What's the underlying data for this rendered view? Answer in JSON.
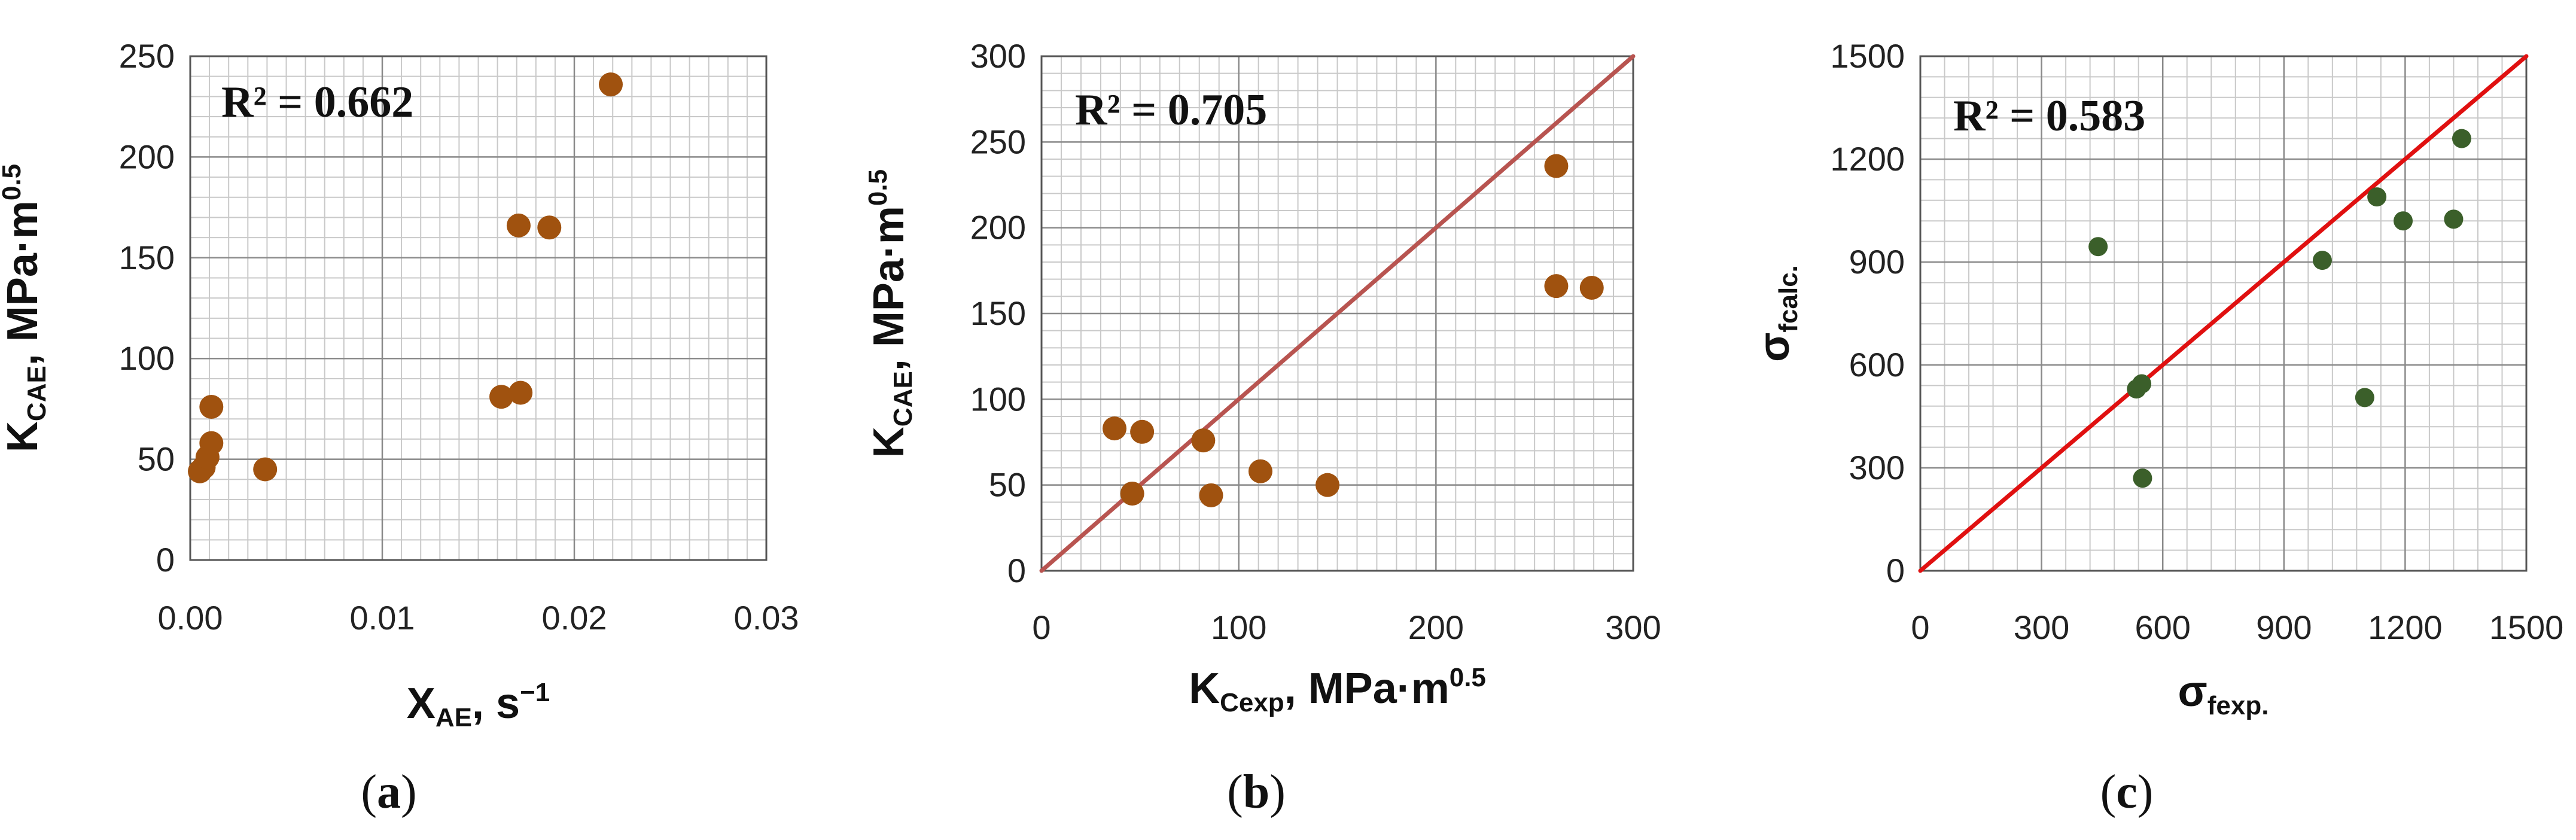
{
  "chart_data": [
    {
      "type": "scatter",
      "panel_label": "(a)",
      "panel_letter": "a",
      "r2_label": "R² = ",
      "r2_value": "0.662",
      "xlabel": {
        "main": "X",
        "sub": "AE",
        "tail": ", s",
        "sup": "−1"
      },
      "ylabel": {
        "main": "K",
        "sub": "CAE",
        "tail": ", MPa·m",
        "sup": "0.5"
      },
      "xlim": [
        0,
        0.03
      ],
      "ylim": [
        0,
        250
      ],
      "xticks": [
        0,
        0.01,
        0.02,
        0.03
      ],
      "xtick_labels": [
        "0.00",
        "0.01",
        "0.02",
        "0.03"
      ],
      "yticks": [
        0,
        50,
        100,
        150,
        200,
        250
      ],
      "ytick_labels": [
        "0",
        "50",
        "100",
        "150",
        "200",
        "250"
      ],
      "x_minor_step": 0.001,
      "y_minor_step": 10,
      "grid": true,
      "marker_color": "#A0520F",
      "points": [
        {
          "x": 0.0005,
          "y": 44
        },
        {
          "x": 0.0007,
          "y": 46
        },
        {
          "x": 0.0009,
          "y": 51
        },
        {
          "x": 0.0011,
          "y": 58
        },
        {
          "x": 0.0011,
          "y": 76
        },
        {
          "x": 0.0039,
          "y": 45
        },
        {
          "x": 0.0162,
          "y": 81
        },
        {
          "x": 0.0172,
          "y": 83
        },
        {
          "x": 0.0171,
          "y": 166
        },
        {
          "x": 0.0187,
          "y": 165
        },
        {
          "x": 0.0219,
          "y": 236
        }
      ]
    },
    {
      "type": "scatter",
      "panel_label": "(b)",
      "panel_letter": "b",
      "r2_label": "R² = ",
      "r2_value": "0.705",
      "xlabel": {
        "main": "K",
        "sub": "Cexp",
        "tail": ", MPa·m",
        "sup": "0.5"
      },
      "ylabel": {
        "main": "K",
        "sub": "CAE",
        "tail": ", MPa·m",
        "sup": "0.5"
      },
      "xlim": [
        0,
        300
      ],
      "ylim": [
        0,
        300
      ],
      "xticks": [
        0,
        100,
        200,
        300
      ],
      "xtick_labels": [
        "0",
        "100",
        "200",
        "300"
      ],
      "yticks": [
        0,
        50,
        100,
        150,
        200,
        250,
        300
      ],
      "ytick_labels": [
        "0",
        "50",
        "100",
        "150",
        "200",
        "250",
        "300"
      ],
      "x_minor_step": 10,
      "y_minor_step": 10,
      "grid": true,
      "marker_color": "#A0520F",
      "line_color": "#B85450",
      "reference_line": {
        "x": [
          0,
          300
        ],
        "y": [
          0,
          300
        ]
      },
      "points": [
        {
          "x": 37,
          "y": 83
        },
        {
          "x": 51,
          "y": 81
        },
        {
          "x": 46,
          "y": 45
        },
        {
          "x": 82,
          "y": 76
        },
        {
          "x": 86,
          "y": 44
        },
        {
          "x": 111,
          "y": 58
        },
        {
          "x": 145,
          "y": 50
        },
        {
          "x": 261,
          "y": 236
        },
        {
          "x": 261,
          "y": 166
        },
        {
          "x": 279,
          "y": 165
        }
      ]
    },
    {
      "type": "scatter",
      "panel_label": "(c)",
      "panel_letter": "c",
      "r2_label": "R² = ",
      "r2_value": "0.583",
      "xlabel": {
        "main": "σ",
        "sub": "fexp.",
        "tail": "",
        "sup": ""
      },
      "ylabel": {
        "main": "σ",
        "sub": "fcalc.",
        "tail": "",
        "sup": ""
      },
      "xlim": [
        0,
        1500
      ],
      "ylim": [
        0,
        1500
      ],
      "xticks": [
        0,
        300,
        600,
        900,
        1200,
        1500
      ],
      "xtick_labels": [
        "0",
        "300",
        "600",
        "900",
        "1200",
        "1500"
      ],
      "yticks": [
        0,
        300,
        600,
        900,
        1200,
        1500
      ],
      "ytick_labels": [
        "0",
        "300",
        "600",
        "900",
        "1200",
        "1500"
      ],
      "x_minor_step": 60,
      "y_minor_step": 60,
      "grid": true,
      "marker_color": "#3B5F2A",
      "line_color": "#E01010",
      "reference_line": {
        "x": [
          0,
          1500
        ],
        "y": [
          0,
          1500
        ]
      },
      "points": [
        {
          "x": 440,
          "y": 945
        },
        {
          "x": 535,
          "y": 530
        },
        {
          "x": 548,
          "y": 545
        },
        {
          "x": 550,
          "y": 270
        },
        {
          "x": 995,
          "y": 905
        },
        {
          "x": 1100,
          "y": 505
        },
        {
          "x": 1130,
          "y": 1090
        },
        {
          "x": 1195,
          "y": 1020
        },
        {
          "x": 1320,
          "y": 1025
        },
        {
          "x": 1340,
          "y": 1260
        }
      ]
    }
  ]
}
